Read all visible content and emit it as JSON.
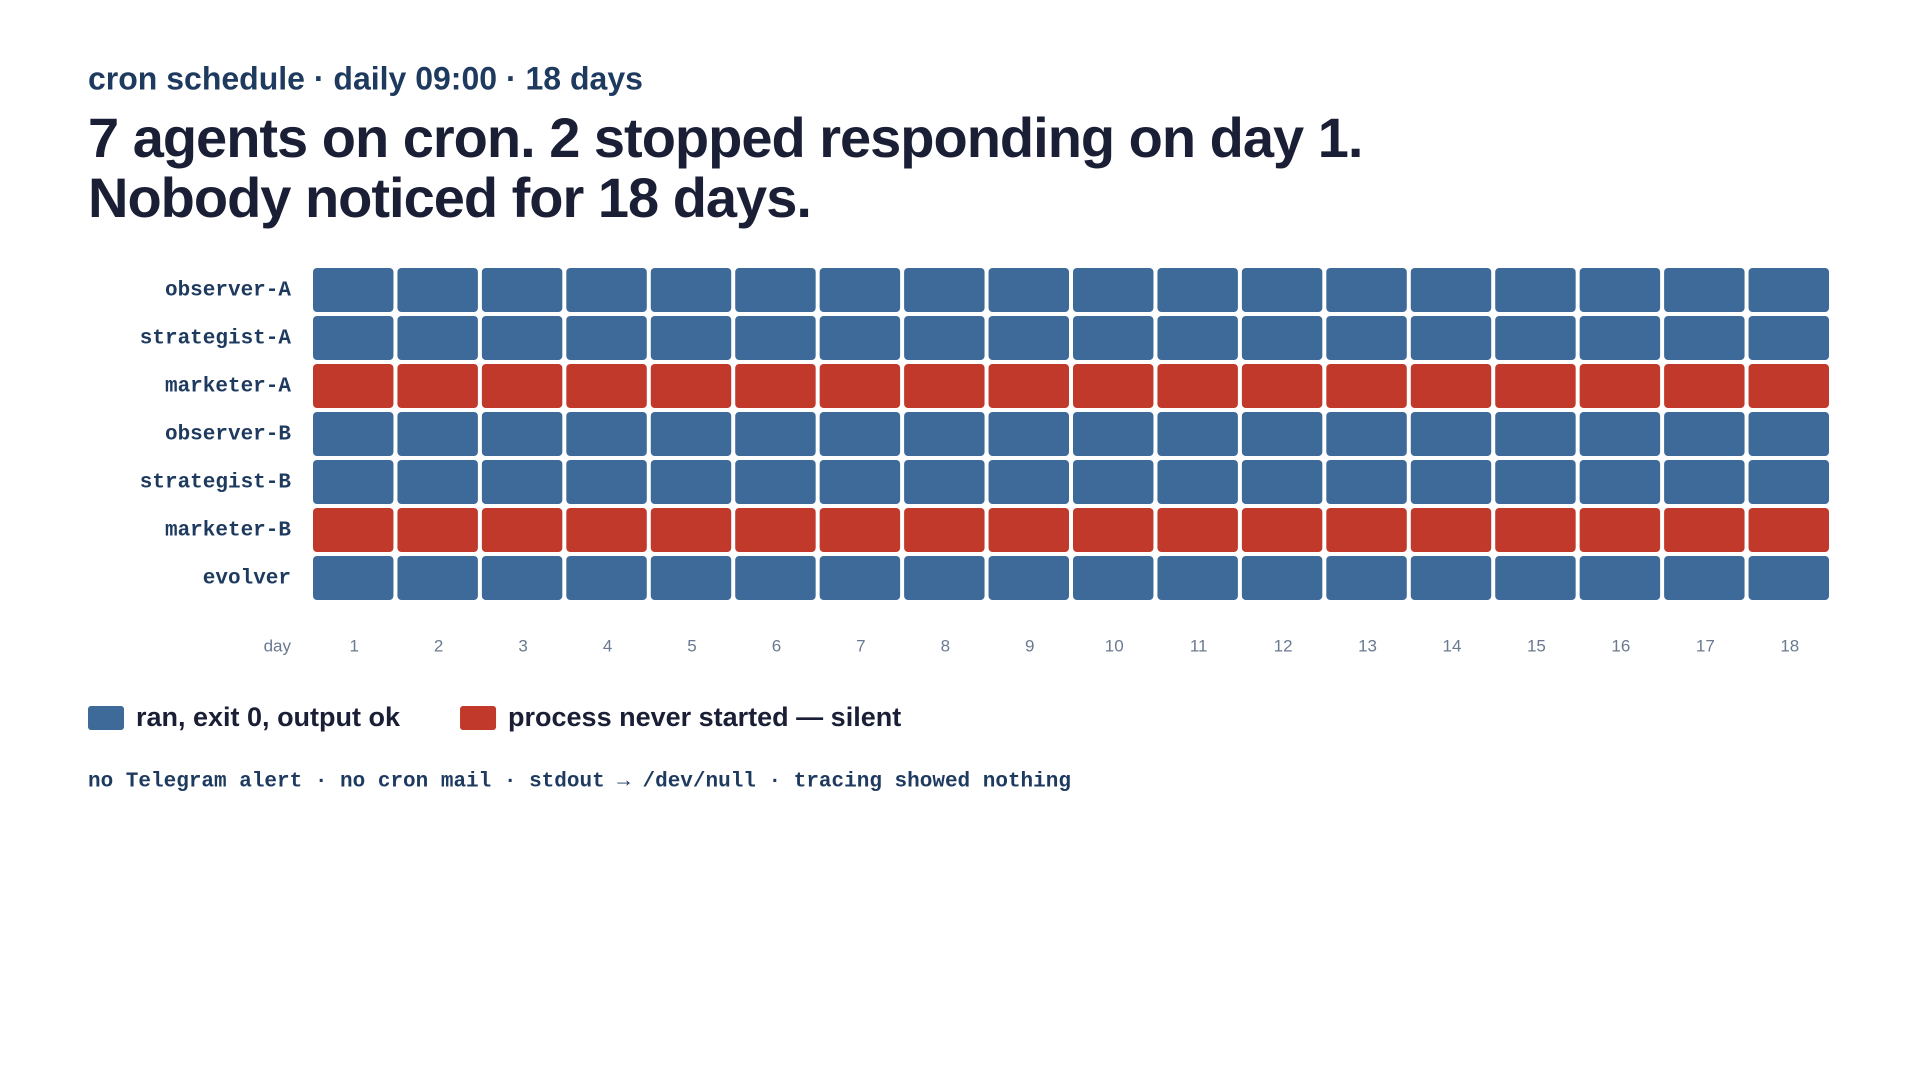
{
  "chart_data": {
    "type": "heatmap",
    "subtitle": "cron schedule · daily 09:00 · 18 days",
    "title": [
      "7 agents on cron. 2 stopped responding on day 1.",
      "Nobody noticed for 18 days."
    ],
    "categories": [
      "observer-A",
      "strategist-A",
      "marketer-A",
      "observer-B",
      "strategist-B",
      "marketer-B",
      "evolver"
    ],
    "x_label": "day",
    "x": [
      1,
      2,
      3,
      4,
      5,
      6,
      7,
      8,
      9,
      10,
      11,
      12,
      13,
      14,
      15,
      16,
      17,
      18
    ],
    "values": [
      [
        1,
        1,
        1,
        1,
        1,
        1,
        1,
        1,
        1,
        1,
        1,
        1,
        1,
        1,
        1,
        1,
        1,
        1
      ],
      [
        1,
        1,
        1,
        1,
        1,
        1,
        1,
        1,
        1,
        1,
        1,
        1,
        1,
        1,
        1,
        1,
        1,
        1
      ],
      [
        0,
        0,
        0,
        0,
        0,
        0,
        0,
        0,
        0,
        0,
        0,
        0,
        0,
        0,
        0,
        0,
        0,
        0
      ],
      [
        1,
        1,
        1,
        1,
        1,
        1,
        1,
        1,
        1,
        1,
        1,
        1,
        1,
        1,
        1,
        1,
        1,
        1
      ],
      [
        1,
        1,
        1,
        1,
        1,
        1,
        1,
        1,
        1,
        1,
        1,
        1,
        1,
        1,
        1,
        1,
        1,
        1
      ],
      [
        0,
        0,
        0,
        0,
        0,
        0,
        0,
        0,
        0,
        0,
        0,
        0,
        0,
        0,
        0,
        0,
        0,
        0
      ],
      [
        1,
        1,
        1,
        1,
        1,
        1,
        1,
        1,
        1,
        1,
        1,
        1,
        1,
        1,
        1,
        1,
        1,
        1
      ]
    ],
    "legend": [
      {
        "label": "ran, exit 0, output ok",
        "color": "#3d6a99",
        "value": 1
      },
      {
        "label": "process never started — silent",
        "color": "#c0392b",
        "value": 0
      }
    ],
    "footnote": "no Telegram alert · no cron mail · stdout → /dev/null · tracing showed nothing"
  }
}
